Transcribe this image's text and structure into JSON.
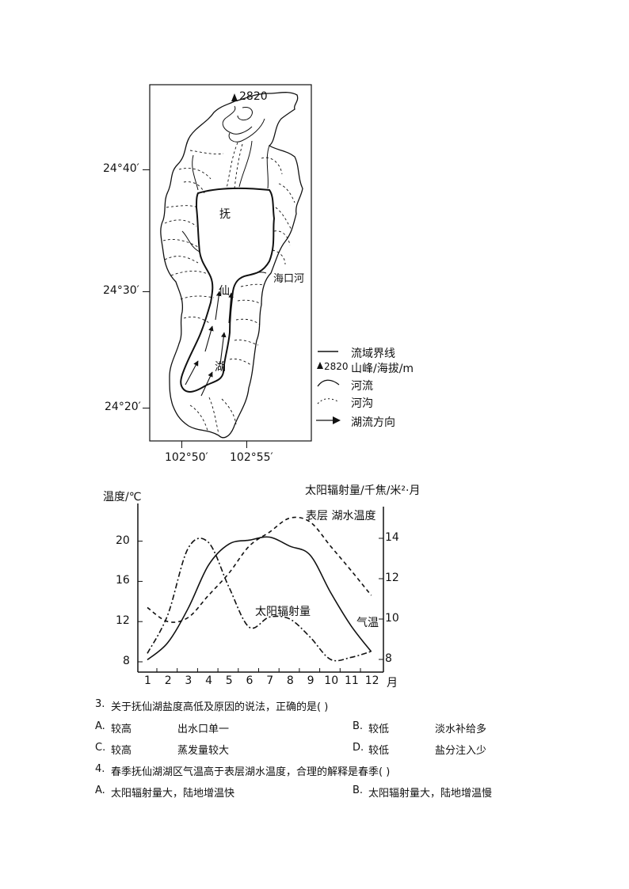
{
  "map": {
    "peak_label": "2820",
    "lake_chars": [
      "抚",
      "仙",
      "湖"
    ],
    "river_label": "海口河",
    "lat_ticks": [
      "24°40′",
      "24°30′",
      "24°20′"
    ],
    "lon_ticks": [
      "102°50′",
      "102°55′"
    ],
    "legend": [
      {
        "symbol": "boundary-line",
        "label": "流域界线"
      },
      {
        "symbol": "peak",
        "symbol_text": "2820",
        "label": "山峰/海拔/m"
      },
      {
        "symbol": "river",
        "label": "河流"
      },
      {
        "symbol": "gully",
        "label": "河沟"
      },
      {
        "symbol": "arrow",
        "label": "湖流方向"
      }
    ]
  },
  "chart_data": {
    "type": "line",
    "title": "",
    "xlabel": "月",
    "ylabel_left": "温度/℃",
    "ylabel_right": "太阳辐射量/千焦/米²·月",
    "x": [
      1,
      2,
      3,
      4,
      5,
      6,
      7,
      8,
      9,
      10,
      11,
      12
    ],
    "ylim_left": [
      7,
      24
    ],
    "ylim_right": [
      7.5,
      15.5
    ],
    "yticks_left": [
      8,
      12,
      16,
      20
    ],
    "yticks_right": [
      8,
      10,
      12,
      14
    ],
    "grid": false,
    "series": [
      {
        "name": "气温",
        "axis": "left",
        "style": "solid",
        "values": [
          8.2,
          9.9,
          13.3,
          17.6,
          19.7,
          20.1,
          20.4,
          19.5,
          18.6,
          14.9,
          11.6,
          9.0
        ]
      },
      {
        "name": "表层湖水温度",
        "axis": "left",
        "style": "dashed",
        "values": [
          13.4,
          12.0,
          12.4,
          14.6,
          16.8,
          19.5,
          20.9,
          22.3,
          21.9,
          19.5,
          17.1,
          14.6
        ]
      },
      {
        "name": "太阳辐射量",
        "axis": "right",
        "style": "dash-dot",
        "values": [
          8.3,
          10.2,
          13.5,
          13.8,
          11.6,
          9.6,
          10.1,
          10.0,
          9.1,
          8.0,
          8.1,
          8.4
        ]
      }
    ],
    "annotations": [
      "表层 湖水温度",
      "太阳辐射量",
      "气温"
    ]
  },
  "questions": [
    {
      "number": "3.",
      "stem": "关于抚仙湖盐度高低及原因的说法，正确的是(    )",
      "options": [
        {
          "letter": "A.",
          "col1": "较高",
          "col2": "出水口单一"
        },
        {
          "letter": "B.",
          "col1": "较低",
          "col2": "淡水补给多"
        },
        {
          "letter": "C.",
          "col1": "较高",
          "col2": "蒸发量较大"
        },
        {
          "letter": "D.",
          "col1": "较低",
          "col2": "盐分注入少"
        }
      ]
    },
    {
      "number": "4.",
      "stem": "春季抚仙湖湖区气温高于表层湖水温度，合理的解释是春季(    )",
      "options": [
        {
          "letter": "A.",
          "text": "太阳辐射量大，陆地增温快"
        },
        {
          "letter": "B.",
          "text": "太阳辐射量大，陆地增温慢"
        }
      ]
    }
  ]
}
